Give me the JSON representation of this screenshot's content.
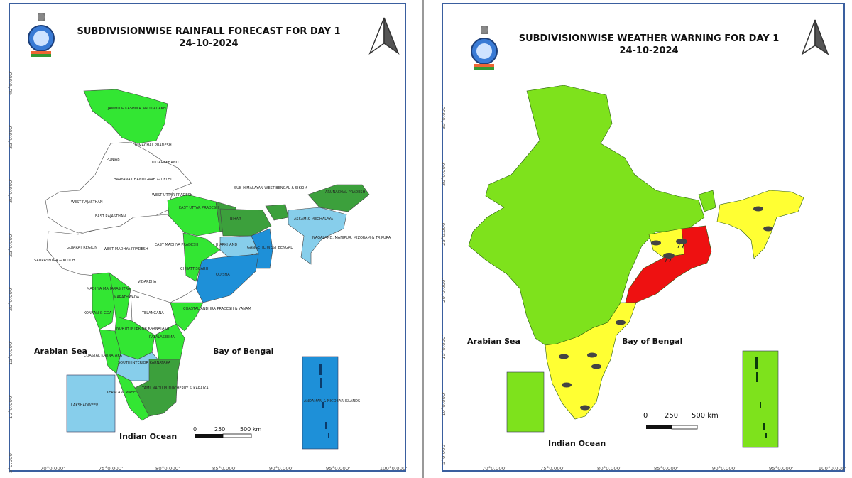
{
  "left_map": {
    "title_line1": "SUBDIVISIONWISE RAINFALL FORECAST FOR DAY 1",
    "title_line2": "24-10-2024",
    "arabian_sea": "Arabian Sea",
    "bay_of_bengal": "Bay of Bengal",
    "indian_ocean": "Indian Ocean",
    "scale": [
      "0",
      "250",
      "500 km"
    ],
    "lon_ticks": [
      "70°0.000'",
      "75°0.000'",
      "80°0.000'",
      "85°0.000'",
      "90°0.000'",
      "95°0.000'",
      "100°0.000'"
    ],
    "lat_ticks": [
      "5°0.000'",
      "10°0.000'",
      "15°0.000'",
      "20°0.000'",
      "25°0.000'",
      "30°0.000'",
      "35°0.000'",
      "40°0.000'"
    ],
    "colors": {
      "no_rain": "#ffffff",
      "isolated": "#33e633",
      "scattered": "#3ca03c",
      "fairly_widespread": "#87ceeb",
      "widespread": "#1e90d8"
    },
    "subdivision_labels": {
      "jk": "JAMMU & KASHMIR AND LADAKH",
      "hp": "HIMACHAL PRADESH",
      "punjab": "PUNJAB",
      "uttarakhand": "UTTARAKHAND",
      "haryana": "HARYANA CHANDIGARH & DELHI",
      "west_rajasthan": "WEST RAJASTHAN",
      "east_rajasthan": "EAST RAJASTHAN",
      "west_up": "WEST UTTAR PRADESH",
      "east_up": "EAST UTTAR PRADESH",
      "bihar": "BIHAR",
      "shwb": "SUB-HIMALAYAN WEST BENGAL & SIKKIM",
      "arunachal": "ARUNACHAL PRADESH",
      "assam": "ASSAM & MEGHALAYA",
      "nmmt": "NAGALAND, MANIPUR, MIZORAM & TRIPURA",
      "gujarat": "GUJARAT REGION",
      "saurashtra": "SAURASHTRA & KUTCH",
      "west_mp": "WEST MADHYA PRADESH",
      "east_mp": "EAST MADHYA PRADESH",
      "jharkhand": "JHARKHAND",
      "gwb": "GANGETIC WEST BENGAL",
      "odisha": "ODISHA",
      "chhattisgarh": "CHHATTISGARH",
      "vidarbha": "VIDARBHA",
      "marathwada": "MARATHWADA",
      "madhya_maharashtra": "MADHYA MAHARASHTRA",
      "konkan": "KONKAN & GOA",
      "telangana": "TELANGANA",
      "coastal_ap": "COASTAL ANDHRA PRADESH & YANAM",
      "rayalaseema": "RAYALASEEMA",
      "nik": "NORTH INTERIOR KARNATAKA",
      "ck": "COASTAL KARNATAKA",
      "sik": "SOUTH INTERIOR KARNATAKA",
      "kerala": "KERALA & MAHE",
      "tn": "TAMILNADU PUDUCHERRY & KARAIKAL",
      "lakshadweep": "LAKSHADWEEP",
      "andaman": "ANDAMAN & NICOBAR ISLANDS"
    }
  },
  "right_map": {
    "title_line1": "SUBDIVISIONWISE WEATHER WARNING FOR DAY 1",
    "title_line2": "24-10-2024",
    "arabian_sea": "Arabian Sea",
    "bay_of_bengal": "Bay of Bengal",
    "indian_ocean": "Indian Ocean",
    "scale": [
      "0",
      "250",
      "500 km"
    ],
    "lon_ticks": [
      "70°0.000'",
      "75°0.000'",
      "80°0.000'",
      "85°0.000'",
      "90°0.000'",
      "95°0.000'",
      "100°0.000'"
    ],
    "lat_ticks": [
      "5°0.000'",
      "10°0.000'",
      "15°0.000'",
      "20°0.000'",
      "25°0.000'",
      "30°0.000'",
      "35°0.000'"
    ],
    "colors": {
      "no_warning": "#7ee21c",
      "yellow": "#ffff33",
      "orange": "#ffd700",
      "red": "#ee1111"
    }
  }
}
